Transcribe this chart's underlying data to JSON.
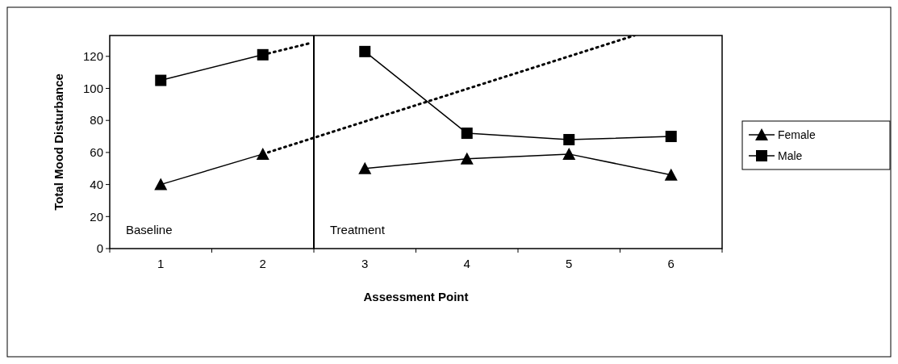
{
  "chart_data": {
    "type": "line",
    "xlabel": "Assessment Point",
    "ylabel": "Total Mood Disturbance",
    "x": [
      1,
      2,
      3,
      4,
      5,
      6
    ],
    "xlim": [
      0.5,
      6.5
    ],
    "xticks": [
      1,
      2,
      3,
      4,
      5,
      6
    ],
    "ylim": [
      0,
      133
    ],
    "yticks": [
      0,
      20,
      40,
      60,
      80,
      100,
      120
    ],
    "grid": false,
    "legend": "right",
    "line_style": "solid",
    "series": [
      {
        "name": "Female",
        "color": "#000000",
        "marker": "triangle",
        "values": [
          40,
          59,
          50,
          56,
          59,
          46
        ]
      },
      {
        "name": "Male",
        "color": "#000000",
        "marker": "square",
        "values": [
          105,
          121,
          123,
          72,
          68,
          70
        ]
      },
      {
        "color": "#000000",
        "marker": "none",
        "line_style": "dotted",
        "x": [
          2,
          5.64
        ],
        "values": [
          59,
          133
        ]
      },
      {
        "color": "#000000",
        "marker": "none",
        "line_style": "dotted",
        "x": [
          2,
          2.45
        ],
        "values": [
          121,
          128
        ]
      }
    ],
    "ref_lines": [
      {
        "axis": "x",
        "value": 2.5,
        "color": "#000000",
        "line_style": "solid"
      }
    ],
    "annotations": [
      "Baseline",
      "Treatment"
    ]
  }
}
